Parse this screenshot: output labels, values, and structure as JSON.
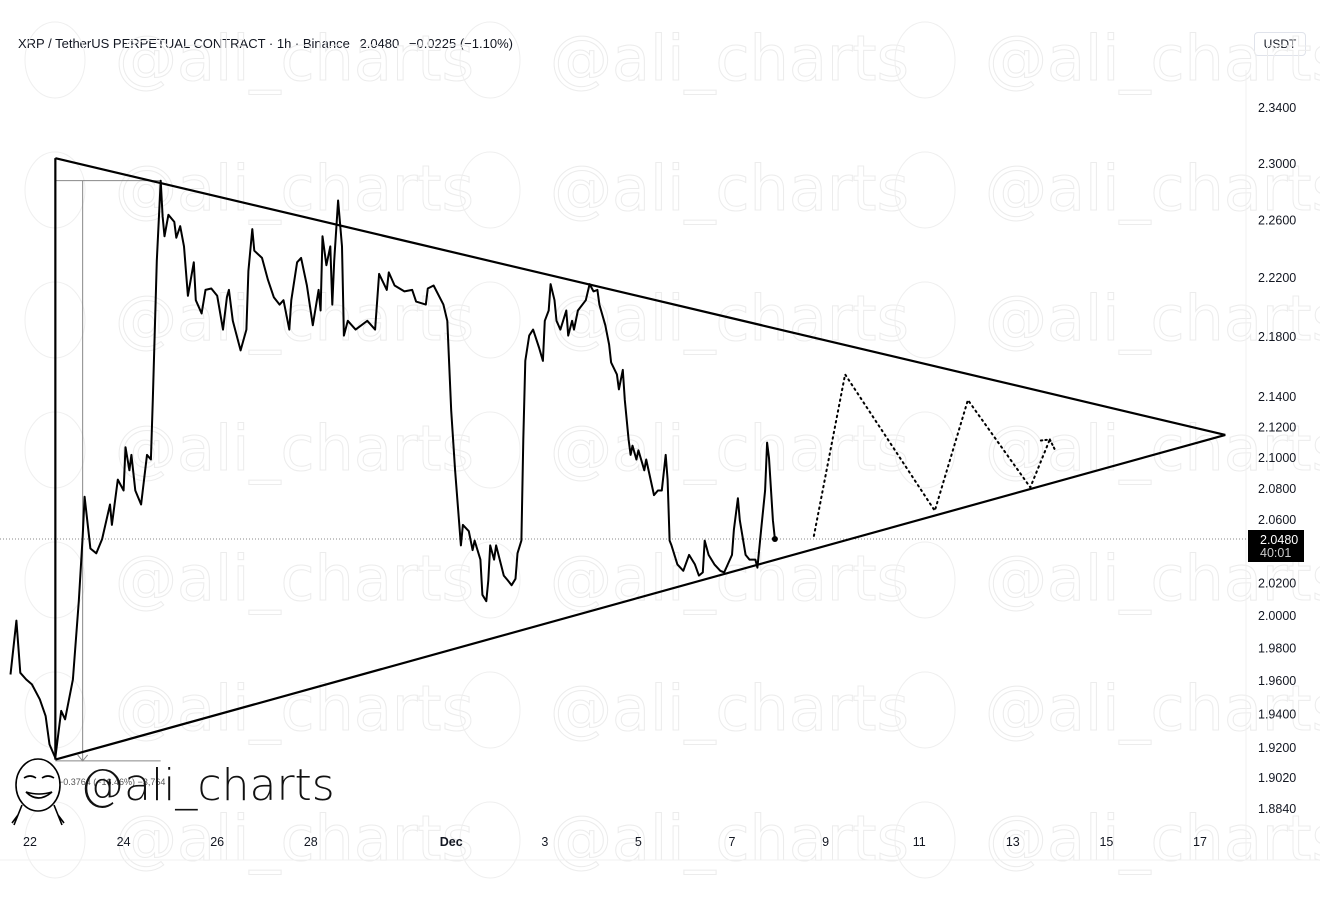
{
  "header": {
    "symbol": "XRP / TetherUS PERPETUAL CONTRACT · 1h · Binance",
    "last_price": "2.0480",
    "change": "−0.0225 (−1.10%)"
  },
  "currency_button": "USDT",
  "watermark": "@ali_charts",
  "logo_text": "@ali_charts",
  "last_price_label": {
    "price": "2.0480",
    "countdown": "40:01"
  },
  "measure_label": "−0.3764 (−16.46%) −3,764",
  "colors": {
    "line": "#000000",
    "price_label_bg": "#000000",
    "watermark": "#ececec"
  },
  "chart_data": {
    "type": "line",
    "title": "XRP / TetherUS PERPETUAL CONTRACT · 1h · Binance",
    "y_scale": "log",
    "ylim": [
      1.876,
      2.36
    ],
    "xlim": [
      "11-21 13:00",
      "12-18 12:00"
    ],
    "grid": false,
    "y_ticks": [
      "2.3400",
      "2.3000",
      "2.2600",
      "2.2200",
      "2.1800",
      "2.1400",
      "2.1200",
      "2.1000",
      "2.0800",
      "2.0600",
      "2.0200",
      "2.0000",
      "1.9800",
      "1.9600",
      "1.9400",
      "1.9200",
      "1.9020",
      "1.8840"
    ],
    "x_ticks": [
      {
        "label": "22",
        "t": "11-22 00:00"
      },
      {
        "label": "24",
        "t": "11-24 00:00"
      },
      {
        "label": "26",
        "t": "11-26 00:00"
      },
      {
        "label": "28",
        "t": "11-28 00:00"
      },
      {
        "label": "Dec",
        "t": "12-01 00:00",
        "bold": true
      },
      {
        "label": "3",
        "t": "12-03 00:00"
      },
      {
        "label": "5",
        "t": "12-05 00:00"
      },
      {
        "label": "7",
        "t": "12-07 00:00"
      },
      {
        "label": "9",
        "t": "12-09 00:00"
      },
      {
        "label": "11",
        "t": "12-11 00:00"
      },
      {
        "label": "13",
        "t": "12-13 00:00"
      },
      {
        "label": "15",
        "t": "12-15 00:00"
      },
      {
        "label": "17",
        "t": "12-17 00:00"
      }
    ],
    "series": [
      {
        "points": [
          [
            "11-21 14:00",
            1.964
          ],
          [
            "11-21 17:00",
            1.997
          ],
          [
            "11-21 19:00",
            1.965
          ],
          [
            "11-21 22:00",
            1.961
          ],
          [
            "11-22 01:00",
            1.958
          ],
          [
            "11-22 05:00",
            1.949
          ],
          [
            "11-22 08:00",
            1.939
          ],
          [
            "11-22 10:00",
            1.922
          ],
          [
            "11-22 13:00",
            1.914
          ],
          [
            "11-22 16:00",
            1.942
          ],
          [
            "11-22 18:00",
            1.937
          ],
          [
            "11-22 22:00",
            1.961
          ],
          [
            "11-23 01:00",
            2.009
          ],
          [
            "11-23 03:00",
            2.05
          ],
          [
            "11-23 04:00",
            2.075
          ],
          [
            "11-23 07:00",
            2.042
          ],
          [
            "11-23 10:00",
            2.039
          ],
          [
            "11-23 13:00",
            2.048
          ],
          [
            "11-23 17:00",
            2.07
          ],
          [
            "11-23 18:00",
            2.057
          ],
          [
            "11-23 21:00",
            2.086
          ],
          [
            "11-24 00:00",
            2.079
          ],
          [
            "11-24 01:00",
            2.107
          ],
          [
            "11-24 03:00",
            2.092
          ],
          [
            "11-24 04:00",
            2.102
          ],
          [
            "11-24 06:00",
            2.079
          ],
          [
            "11-24 09:00",
            2.07
          ],
          [
            "11-24 12:00",
            2.102
          ],
          [
            "11-24 14:00",
            2.099
          ],
          [
            "11-24 15:00",
            2.138
          ],
          [
            "11-24 17:00",
            2.232
          ],
          [
            "11-24 19:00",
            2.288
          ],
          [
            "11-24 20:00",
            2.263
          ],
          [
            "11-24 21:00",
            2.249
          ],
          [
            "11-24 23:00",
            2.264
          ],
          [
            "11-25 02:00",
            2.259
          ],
          [
            "11-25 03:00",
            2.248
          ],
          [
            "11-25 05:00",
            2.256
          ],
          [
            "11-25 07:00",
            2.242
          ],
          [
            "11-25 09:00",
            2.208
          ],
          [
            "11-25 12:00",
            2.231
          ],
          [
            "11-25 13:00",
            2.205
          ],
          [
            "11-25 16:00",
            2.196
          ],
          [
            "11-25 18:00",
            2.212
          ],
          [
            "11-25 21:00",
            2.213
          ],
          [
            "11-26 00:00",
            2.208
          ],
          [
            "11-26 03:00",
            2.185
          ],
          [
            "11-26 05:00",
            2.207
          ],
          [
            "11-26 06:00",
            2.212
          ],
          [
            "11-26 08:00",
            2.191
          ],
          [
            "11-26 10:00",
            2.181
          ],
          [
            "11-26 12:00",
            2.171
          ],
          [
            "11-26 15:00",
            2.185
          ],
          [
            "11-26 16:00",
            2.225
          ],
          [
            "11-26 18:00",
            2.254
          ],
          [
            "11-26 19:00",
            2.239
          ],
          [
            "11-26 23:00",
            2.234
          ],
          [
            "11-27 02:00",
            2.219
          ],
          [
            "11-27 05:00",
            2.207
          ],
          [
            "11-27 08:00",
            2.202
          ],
          [
            "11-27 10:00",
            2.205
          ],
          [
            "11-27 13:00",
            2.185
          ],
          [
            "11-27 14:00",
            2.205
          ],
          [
            "11-27 17:00",
            2.231
          ],
          [
            "11-27 19:00",
            2.234
          ],
          [
            "11-27 22:00",
            2.215
          ],
          [
            "11-28 01:00",
            2.188
          ],
          [
            "11-28 04:00",
            2.212
          ],
          [
            "11-28 05:00",
            2.198
          ],
          [
            "11-28 06:00",
            2.249
          ],
          [
            "11-28 08:00",
            2.229
          ],
          [
            "11-28 10:00",
            2.242
          ],
          [
            "11-28 11:00",
            2.202
          ],
          [
            "11-28 12:00",
            2.232
          ],
          [
            "11-28 14:00",
            2.274
          ],
          [
            "11-28 16:00",
            2.242
          ],
          [
            "11-28 17:00",
            2.181
          ],
          [
            "11-28 19:00",
            2.191
          ],
          [
            "11-28 23:00",
            2.185
          ],
          [
            "11-29 05:00",
            2.191
          ],
          [
            "11-29 09:00",
            2.185
          ],
          [
            "11-29 11:00",
            2.223
          ],
          [
            "11-29 15:00",
            2.212
          ],
          [
            "11-29 16:00",
            2.224
          ],
          [
            "11-29 19:00",
            2.215
          ],
          [
            "11-30 00:00",
            2.211
          ],
          [
            "11-30 04:00",
            2.212
          ],
          [
            "11-30 06:00",
            2.204
          ],
          [
            "11-30 11:00",
            2.202
          ],
          [
            "11-30 12:00",
            2.213
          ],
          [
            "11-30 15:00",
            2.215
          ],
          [
            "11-30 20:00",
            2.202
          ],
          [
            "11-30 22:00",
            2.191
          ],
          [
            "12-01 00:00",
            2.131
          ],
          [
            "12-01 02:00",
            2.092
          ],
          [
            "12-01 05:00",
            2.044
          ],
          [
            "12-01 06:00",
            2.057
          ],
          [
            "12-01 09:00",
            2.053
          ],
          [
            "12-01 11:00",
            2.041
          ],
          [
            "12-01 12:00",
            2.047
          ],
          [
            "12-01 15:00",
            2.035
          ],
          [
            "12-01 16:00",
            2.013
          ],
          [
            "12-01 18:00",
            2.009
          ],
          [
            "12-01 19:00",
            2.022
          ],
          [
            "12-01 20:00",
            2.044
          ],
          [
            "12-01 22:00",
            2.035
          ],
          [
            "12-01 23:00",
            2.044
          ],
          [
            "12-02 03:00",
            2.025
          ],
          [
            "12-02 05:00",
            2.022
          ],
          [
            "12-02 07:00",
            2.019
          ],
          [
            "12-02 09:00",
            2.023
          ],
          [
            "12-02 10:00",
            2.039
          ],
          [
            "12-02 12:00",
            2.047
          ],
          [
            "12-02 13:00",
            2.112
          ],
          [
            "12-02 14:00",
            2.164
          ],
          [
            "12-02 16:00",
            2.181
          ],
          [
            "12-02 18:00",
            2.185
          ],
          [
            "12-02 21:00",
            2.173
          ],
          [
            "12-02 23:00",
            2.164
          ],
          [
            "12-03 00:00",
            2.191
          ],
          [
            "12-03 02:00",
            2.198
          ],
          [
            "12-03 03:00",
            2.216
          ],
          [
            "12-03 05:00",
            2.205
          ],
          [
            "12-03 06:00",
            2.191
          ],
          [
            "12-03 08:00",
            2.185
          ],
          [
            "12-03 11:00",
            2.198
          ],
          [
            "12-03 12:00",
            2.181
          ],
          [
            "12-03 14:00",
            2.191
          ],
          [
            "12-03 15:00",
            2.185
          ],
          [
            "12-03 17:00",
            2.198
          ],
          [
            "12-03 21:00",
            2.205
          ],
          [
            "12-03 23:00",
            2.216
          ],
          [
            "12-04 01:00",
            2.211
          ],
          [
            "12-04 03:00",
            2.212
          ],
          [
            "12-04 04:00",
            2.202
          ],
          [
            "12-04 07:00",
            2.188
          ],
          [
            "12-04 09:00",
            2.175
          ],
          [
            "12-04 10:00",
            2.163
          ],
          [
            "12-04 13:00",
            2.155
          ],
          [
            "12-04 14:00",
            2.145
          ],
          [
            "12-04 16:00",
            2.158
          ],
          [
            "12-04 17:00",
            2.138
          ],
          [
            "12-04 19:00",
            2.112
          ],
          [
            "12-04 20:00",
            2.102
          ],
          [
            "12-04 21:00",
            2.108
          ],
          [
            "12-04 23:00",
            2.099
          ],
          [
            "12-05 00:00",
            2.105
          ],
          [
            "12-05 03:00",
            2.092
          ],
          [
            "12-05 04:00",
            2.099
          ],
          [
            "12-05 08:00",
            2.076
          ],
          [
            "12-05 10:00",
            2.079
          ],
          [
            "12-05 12:00",
            2.079
          ],
          [
            "12-05 14:00",
            2.102
          ],
          [
            "12-05 15:00",
            2.086
          ],
          [
            "12-05 16:00",
            2.047
          ],
          [
            "12-05 17:00",
            2.044
          ],
          [
            "12-05 20:00",
            2.032
          ],
          [
            "12-05 23:00",
            2.028
          ],
          [
            "12-06 02:00",
            2.038
          ],
          [
            "12-06 05:00",
            2.032
          ],
          [
            "12-06 07:00",
            2.025
          ],
          [
            "12-06 09:00",
            2.027
          ],
          [
            "12-06 10:00",
            2.047
          ],
          [
            "12-06 12:00",
            2.038
          ],
          [
            "12-06 15:00",
            2.032
          ],
          [
            "12-06 18:00",
            2.028
          ],
          [
            "12-06 20:00",
            2.027
          ],
          [
            "12-07 00:00",
            2.038
          ],
          [
            "12-07 01:00",
            2.054
          ],
          [
            "12-07 03:00",
            2.074
          ],
          [
            "12-07 04:00",
            2.06
          ],
          [
            "12-07 07:00",
            2.038
          ],
          [
            "12-07 09:00",
            2.035
          ],
          [
            "12-07 12:00",
            2.035
          ],
          [
            "12-07 13:00",
            2.03
          ],
          [
            "12-07 14:00",
            2.042
          ],
          [
            "12-07 15:00",
            2.055
          ],
          [
            "12-07 17:00",
            2.079
          ],
          [
            "12-07 18:00",
            2.11
          ],
          [
            "12-07 19:00",
            2.1
          ],
          [
            "12-07 21:00",
            2.06
          ],
          [
            "12-07 22:00",
            2.048
          ]
        ]
      }
    ],
    "trendlines": [
      {
        "name": "upper",
        "from": [
          "11-22 13:00",
          2.304
        ],
        "to": [
          "12-17 13:00",
          2.115
        ]
      },
      {
        "name": "lower",
        "from": [
          "11-22 13:00",
          1.913
        ],
        "to": [
          "12-17 13:00",
          2.115
        ]
      }
    ],
    "projection": [
      [
        "12-08 18:00",
        2.05
      ],
      [
        "12-09 10:00",
        2.155
      ],
      [
        "12-11 08:00",
        2.066
      ],
      [
        "12-12 01:00",
        2.138
      ],
      [
        "12-13 09:00",
        2.081
      ],
      [
        "12-13 19:00",
        2.112
      ]
    ],
    "measure": {
      "from": [
        "11-22 13:00",
        2.288
      ],
      "to": [
        "11-22 13:00",
        1.914
      ],
      "t": "11-23 03:00",
      "t_end": "11-24 19:00"
    },
    "last_price": 2.048
  }
}
